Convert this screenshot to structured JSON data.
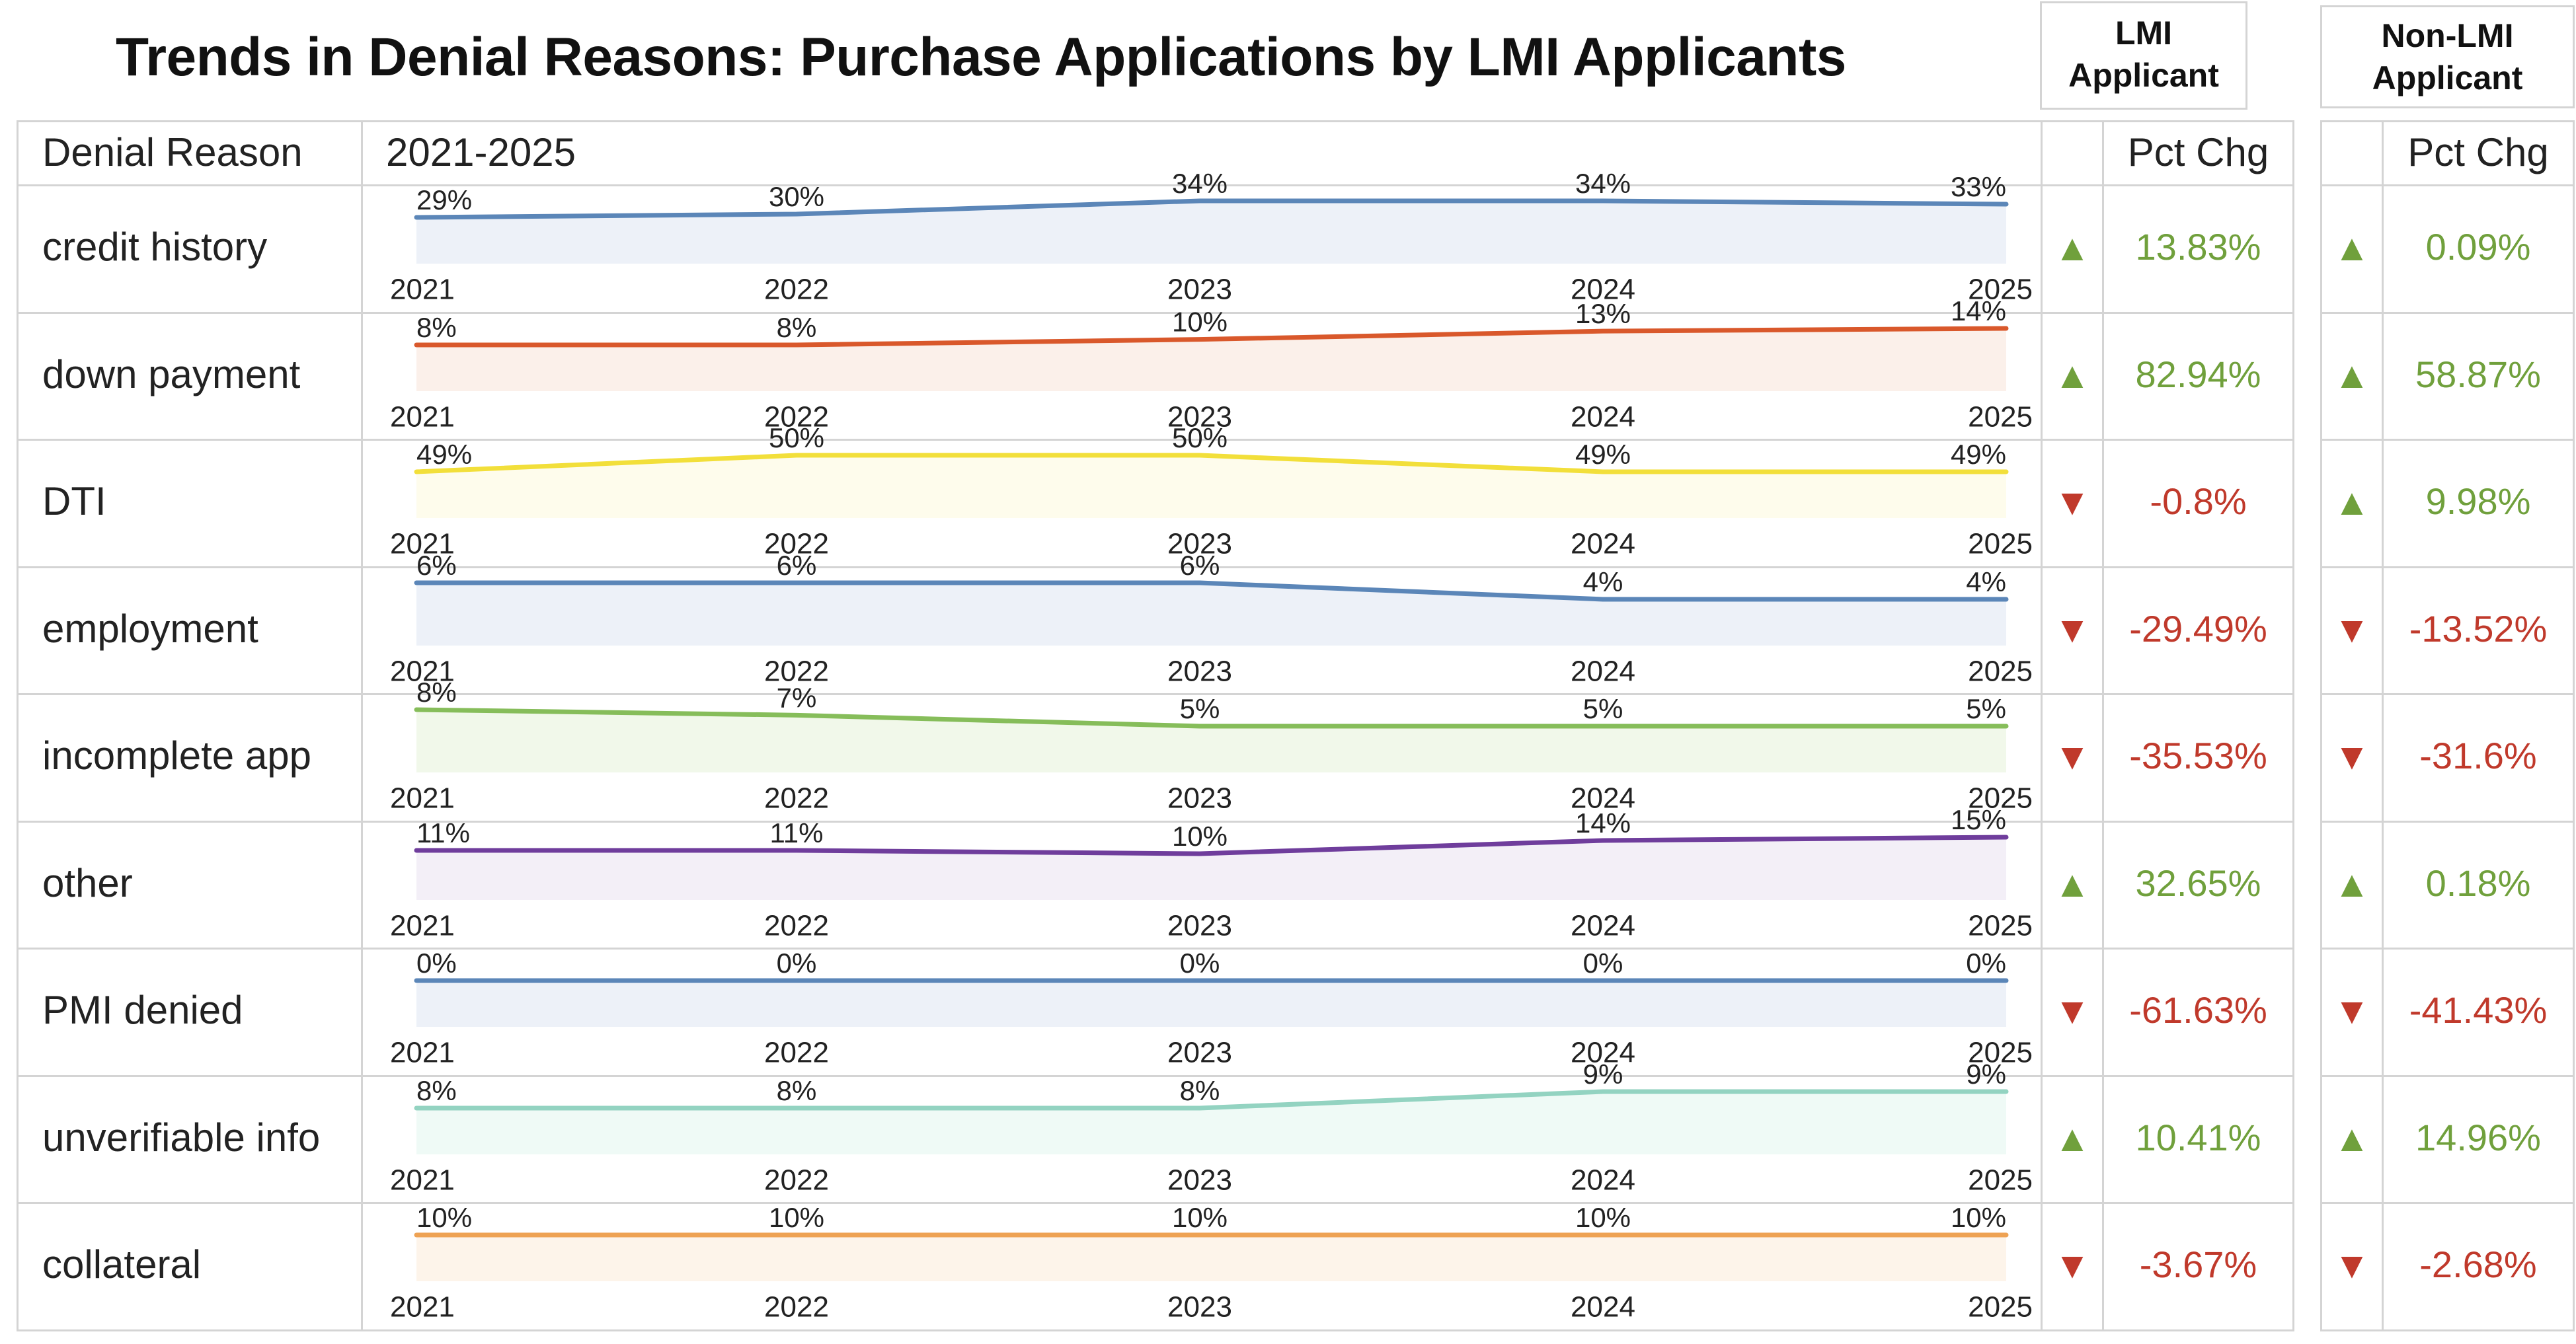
{
  "header": {
    "title": "Trends in Denial Reasons:  Purchase Applications by LMI Applicants",
    "col_reason": "Denial Reason",
    "col_period": "2021-2025",
    "group_lmi_line1": "LMI",
    "group_lmi_line2": "Applicant",
    "group_nonlmi_line1": "Non-LMI",
    "group_nonlmi_line2": "Applicant",
    "pct_chg_lmi": "Pct Chg",
    "pct_chg_nonlmi": "Pct Chg"
  },
  "colors": {
    "up": "#70a03c",
    "down": "#c0392b",
    "grid": "#d4d4d4"
  },
  "chart_data": {
    "type": "line",
    "x": [
      "2021",
      "2022",
      "2023",
      "2024",
      "2025"
    ],
    "rows": [
      {
        "reason": "credit history",
        "values": [
          "29%",
          "30%",
          "34%",
          "34%",
          "33%"
        ],
        "numeric": [
          29,
          30,
          34,
          34,
          33
        ],
        "color": "#5b86b8",
        "fill": "#edf1f8",
        "lmi_dir": "up",
        "lmi_arrow": "▲",
        "lmi_pct": "13.83%",
        "non_dir": "up",
        "non_arrow": "▲",
        "non_pct": "0.09%"
      },
      {
        "reason": "down payment",
        "values": [
          "8%",
          "8%",
          "10%",
          "13%",
          "14%"
        ],
        "numeric": [
          8,
          8,
          10,
          13,
          14
        ],
        "color": "#d9582b",
        "fill": "#fbf0ea",
        "lmi_dir": "up",
        "lmi_arrow": "▲",
        "lmi_pct": "82.94%",
        "non_dir": "up",
        "non_arrow": "▲",
        "non_pct": "58.87%"
      },
      {
        "reason": "DTI",
        "values": [
          "49%",
          "50%",
          "50%",
          "49%",
          "49%"
        ],
        "numeric": [
          49,
          50,
          50,
          49,
          49
        ],
        "color": "#f2df3a",
        "fill": "#fefcec",
        "lmi_dir": "down",
        "lmi_arrow": "▼",
        "lmi_pct": "-0.8%",
        "non_dir": "up",
        "non_arrow": "▲",
        "non_pct": "9.98%"
      },
      {
        "reason": "employment",
        "values": [
          "6%",
          "6%",
          "6%",
          "4%",
          "4%"
        ],
        "numeric": [
          6,
          6,
          6,
          4,
          4
        ],
        "color": "#5b86b8",
        "fill": "#edf1f8",
        "lmi_dir": "down",
        "lmi_arrow": "▼",
        "lmi_pct": "-29.49%",
        "non_dir": "down",
        "non_arrow": "▼",
        "non_pct": "-13.52%"
      },
      {
        "reason": "incomplete app",
        "values": [
          "8%",
          "7%",
          "5%",
          "5%",
          "5%"
        ],
        "numeric": [
          8,
          7,
          5,
          5,
          5
        ],
        "color": "#86bd5a",
        "fill": "#f1f8ea",
        "lmi_dir": "down",
        "lmi_arrow": "▼",
        "lmi_pct": "-35.53%",
        "non_dir": "down",
        "non_arrow": "▼",
        "non_pct": "-31.6%"
      },
      {
        "reason": "other",
        "values": [
          "11%",
          "11%",
          "10%",
          "14%",
          "15%"
        ],
        "numeric": [
          11,
          11,
          10,
          14,
          15
        ],
        "color": "#6f3d9c",
        "fill": "#f3eff7",
        "lmi_dir": "up",
        "lmi_arrow": "▲",
        "lmi_pct": "32.65%",
        "non_dir": "up",
        "non_arrow": "▲",
        "non_pct": "0.18%"
      },
      {
        "reason": "PMI denied",
        "values": [
          "0%",
          "0%",
          "0%",
          "0%",
          "0%"
        ],
        "numeric": [
          0,
          0,
          0,
          0,
          0
        ],
        "color": "#5b86b8",
        "fill": "#edf1f8",
        "lmi_dir": "down",
        "lmi_arrow": "▼",
        "lmi_pct": "-61.63%",
        "non_dir": "down",
        "non_arrow": "▼",
        "non_pct": "-41.43%"
      },
      {
        "reason": "unverifiable info",
        "values": [
          "8%",
          "8%",
          "8%",
          "9%",
          "9%"
        ],
        "numeric": [
          8,
          8,
          8,
          9,
          9
        ],
        "color": "#93d3c1",
        "fill": "#effaf6",
        "lmi_dir": "up",
        "lmi_arrow": "▲",
        "lmi_pct": "10.41%",
        "non_dir": "up",
        "non_arrow": "▲",
        "non_pct": "14.96%"
      },
      {
        "reason": "collateral",
        "values": [
          "10%",
          "10%",
          "10%",
          "10%",
          "10%"
        ],
        "numeric": [
          10,
          10,
          10,
          10,
          10
        ],
        "color": "#eea253",
        "fill": "#fdf4ea",
        "lmi_dir": "down",
        "lmi_arrow": "▼",
        "lmi_pct": "-3.67%",
        "non_dir": "down",
        "non_arrow": "▼",
        "non_pct": "-2.68%"
      }
    ]
  }
}
